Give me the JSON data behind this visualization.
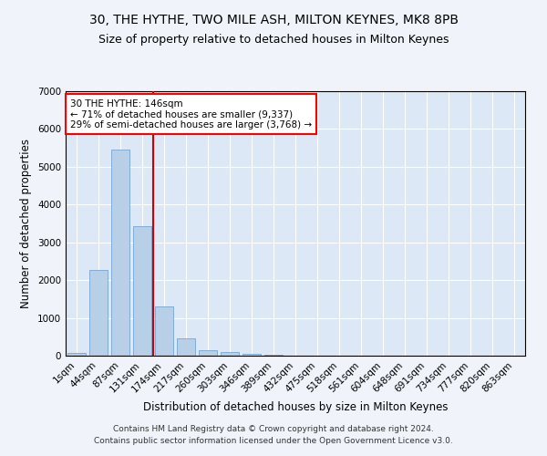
{
  "title1": "30, THE HYTHE, TWO MILE ASH, MILTON KEYNES, MK8 8PB",
  "title2": "Size of property relative to detached houses in Milton Keynes",
  "xlabel": "Distribution of detached houses by size in Milton Keynes",
  "ylabel": "Number of detached properties",
  "categories": [
    "1sqm",
    "44sqm",
    "87sqm",
    "131sqm",
    "174sqm",
    "217sqm",
    "260sqm",
    "303sqm",
    "346sqm",
    "389sqm",
    "432sqm",
    "475sqm",
    "518sqm",
    "561sqm",
    "604sqm",
    "648sqm",
    "691sqm",
    "734sqm",
    "777sqm",
    "820sqm",
    "863sqm"
  ],
  "values": [
    75,
    2280,
    5450,
    3430,
    1310,
    470,
    155,
    85,
    45,
    18,
    8,
    3,
    1,
    0,
    0,
    0,
    0,
    0,
    0,
    0,
    0
  ],
  "bar_color": "#b8cfe8",
  "bar_edge_color": "#6699cc",
  "background_color": "#dce8f5",
  "fig_background": "#f0f4fa",
  "grid_color": "#ffffff",
  "vline_x": 3.5,
  "vline_color": "#cc0000",
  "ylim": [
    0,
    7000
  ],
  "yticks": [
    0,
    1000,
    2000,
    3000,
    4000,
    5000,
    6000,
    7000
  ],
  "annotation_title": "30 THE HYTHE: 146sqm",
  "annotation_line1": "← 71% of detached houses are smaller (9,337)",
  "annotation_line2": "29% of semi-detached houses are larger (3,768) →",
  "footer1": "Contains HM Land Registry data © Crown copyright and database right 2024.",
  "footer2": "Contains public sector information licensed under the Open Government Licence v3.0.",
  "title1_fontsize": 10,
  "title2_fontsize": 9,
  "xlabel_fontsize": 8.5,
  "ylabel_fontsize": 8.5,
  "tick_fontsize": 7.5,
  "annotation_fontsize": 7.5,
  "footer_fontsize": 6.5
}
